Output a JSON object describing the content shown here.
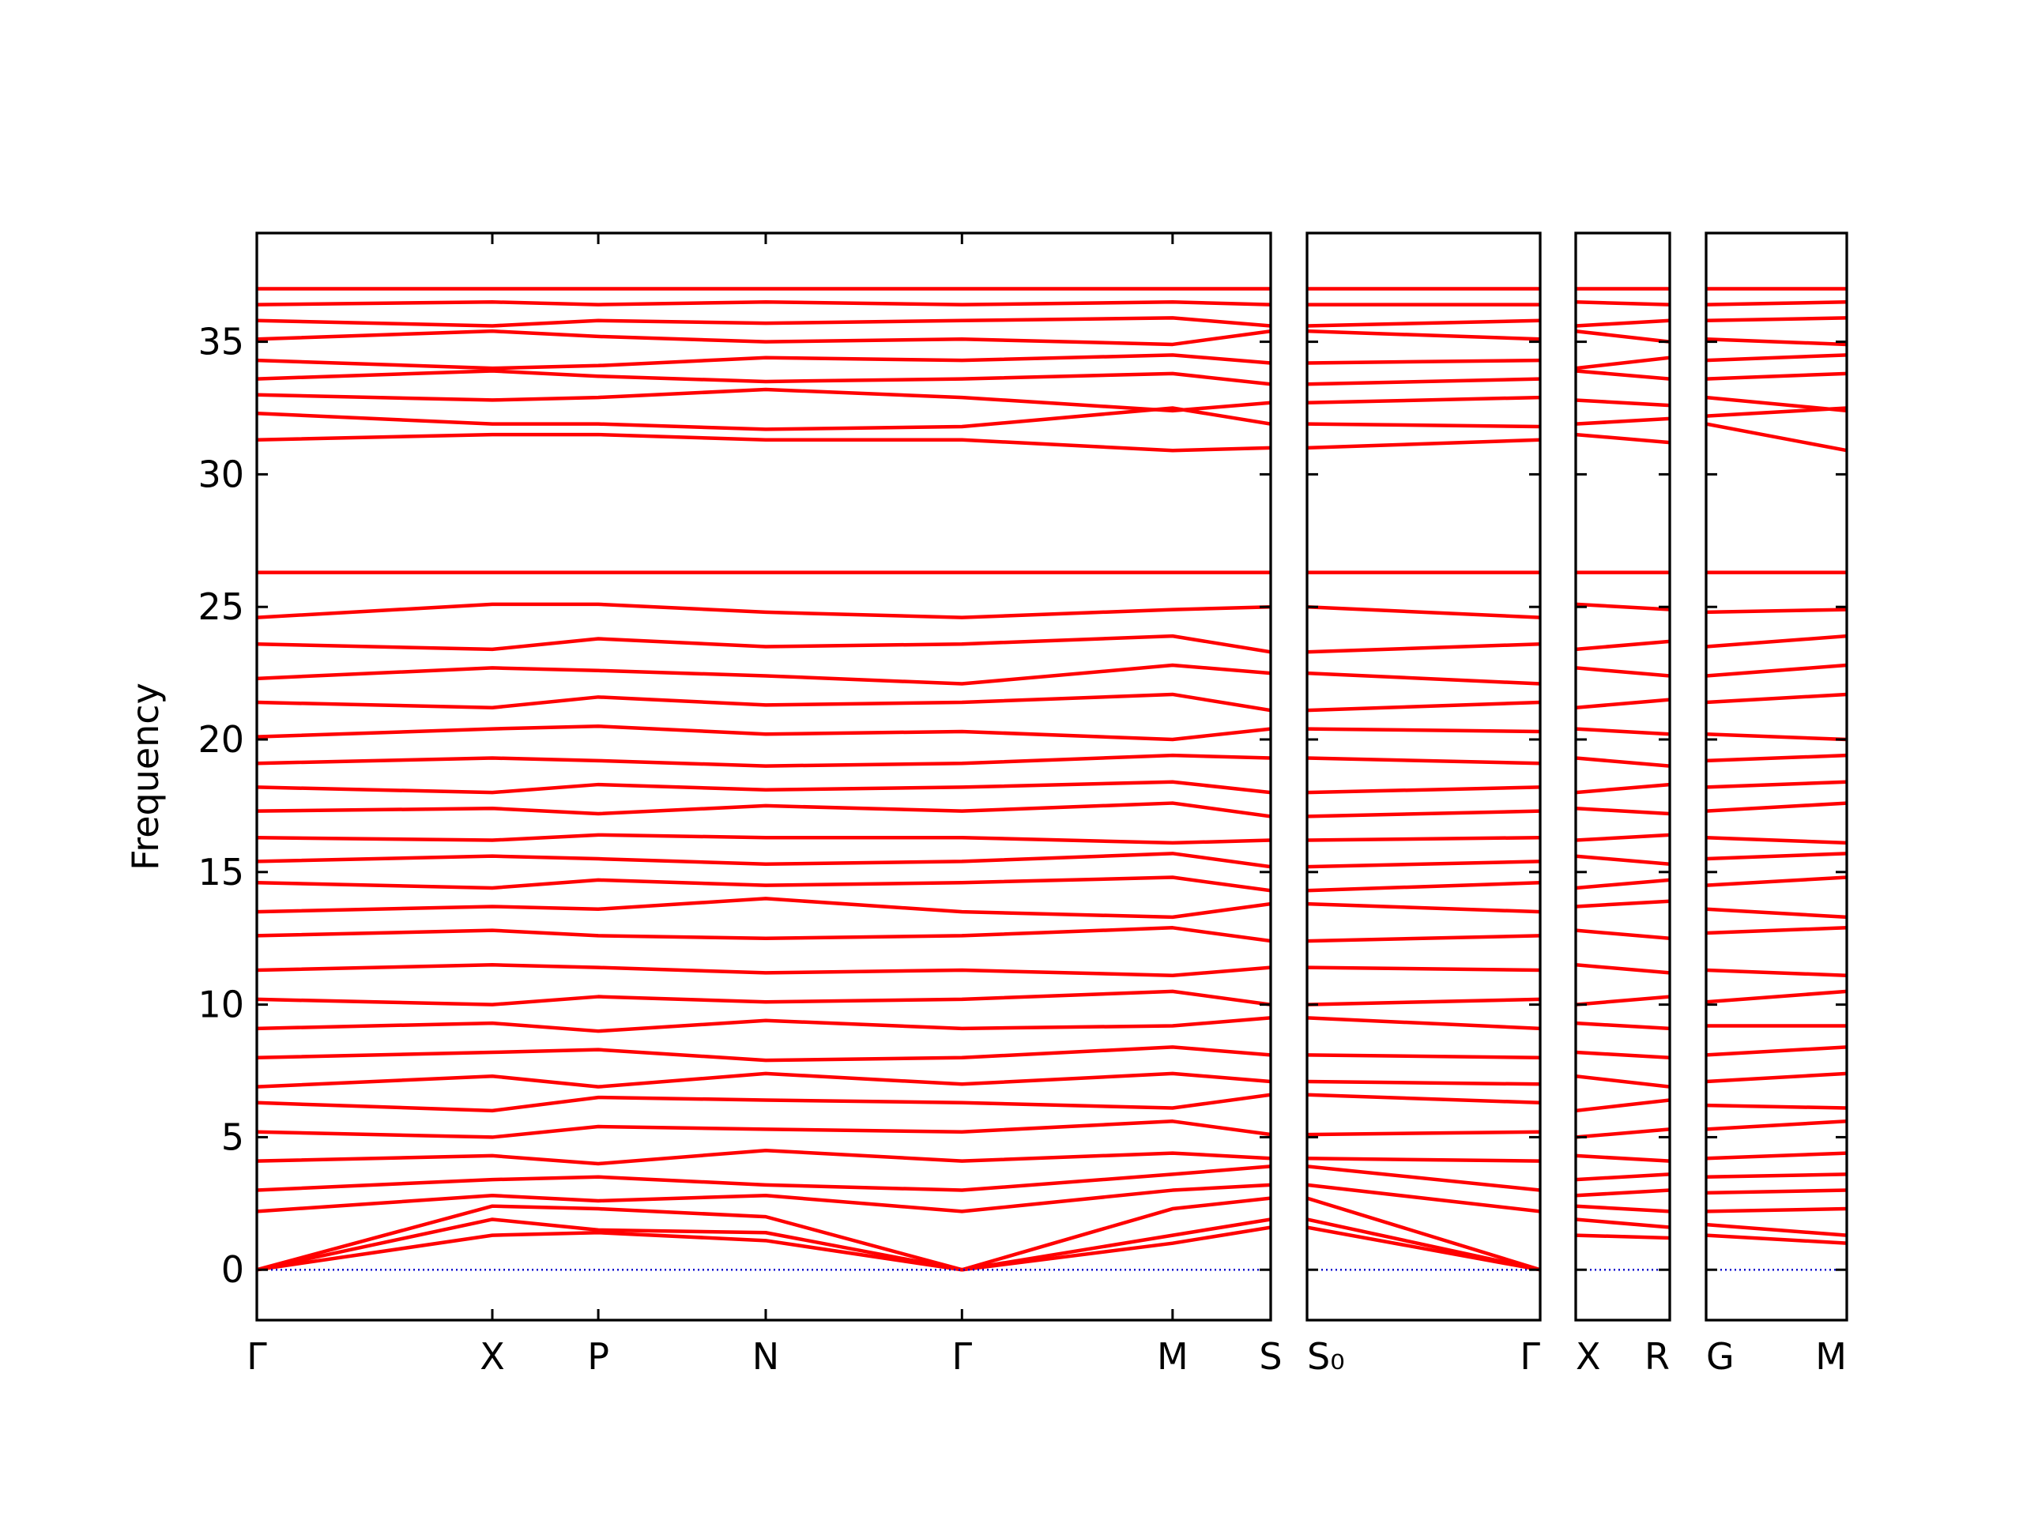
{
  "chart_data": [
    {
      "type": "line",
      "ylabel": "Frequency",
      "color": "#ff0000",
      "zero_line": {
        "value": 0,
        "color": "#0000cc"
      },
      "ylim": [
        -1.9,
        39.1
      ],
      "yticks": [
        0,
        5,
        10,
        15,
        20,
        25,
        30,
        35
      ],
      "ytick_labels": true,
      "xlim": [
        0,
        7.75
      ],
      "x": [
        0,
        1.8,
        2.61,
        3.89,
        5.39,
        7.0,
        7.75
      ],
      "xticks": [
        {
          "value": 0,
          "label": "Γ"
        },
        {
          "value": 1.8,
          "label": "X"
        },
        {
          "value": 2.61,
          "label": "P"
        },
        {
          "value": 3.89,
          "label": "N"
        },
        {
          "value": 5.39,
          "label": "Γ"
        },
        {
          "value": 7.0,
          "label": "M"
        },
        {
          "value": 7.75,
          "label": "S"
        }
      ],
      "series": [
        {
          "values": [
            0,
            1.3,
            1.4,
            1.1,
            0,
            1.0,
            1.6
          ]
        },
        {
          "values": [
            0,
            1.9,
            1.5,
            1.4,
            0,
            1.3,
            1.9
          ]
        },
        {
          "values": [
            0,
            2.4,
            2.3,
            2.0,
            0,
            2.3,
            2.7
          ]
        },
        {
          "values": [
            2.2,
            2.8,
            2.6,
            2.8,
            2.2,
            3.0,
            3.2
          ]
        },
        {
          "values": [
            3.0,
            3.4,
            3.5,
            3.2,
            3.0,
            3.6,
            3.9
          ]
        },
        {
          "values": [
            4.1,
            4.3,
            4.0,
            4.5,
            4.1,
            4.4,
            4.2
          ]
        },
        {
          "values": [
            5.2,
            5.0,
            5.4,
            5.3,
            5.2,
            5.6,
            5.1
          ]
        },
        {
          "values": [
            6.3,
            6.0,
            6.5,
            6.4,
            6.3,
            6.1,
            6.6
          ]
        },
        {
          "values": [
            6.9,
            7.3,
            6.9,
            7.4,
            7.0,
            7.4,
            7.1
          ]
        },
        {
          "values": [
            8.0,
            8.2,
            8.3,
            7.9,
            8.0,
            8.4,
            8.1
          ]
        },
        {
          "values": [
            9.1,
            9.3,
            9.0,
            9.4,
            9.1,
            9.2,
            9.5
          ]
        },
        {
          "values": [
            10.2,
            10.0,
            10.3,
            10.1,
            10.2,
            10.5,
            10.0
          ]
        },
        {
          "values": [
            11.3,
            11.5,
            11.4,
            11.2,
            11.3,
            11.1,
            11.4
          ]
        },
        {
          "values": [
            12.6,
            12.8,
            12.6,
            12.5,
            12.6,
            12.9,
            12.4
          ]
        },
        {
          "values": [
            13.5,
            13.7,
            13.6,
            14.0,
            13.5,
            13.3,
            13.8
          ]
        },
        {
          "values": [
            14.6,
            14.4,
            14.7,
            14.5,
            14.6,
            14.8,
            14.3
          ]
        },
        {
          "values": [
            15.4,
            15.6,
            15.5,
            15.3,
            15.4,
            15.7,
            15.2
          ]
        },
        {
          "values": [
            16.3,
            16.2,
            16.4,
            16.3,
            16.3,
            16.1,
            16.2
          ]
        },
        {
          "values": [
            17.3,
            17.4,
            17.2,
            17.5,
            17.3,
            17.6,
            17.1
          ]
        },
        {
          "values": [
            18.2,
            18.0,
            18.3,
            18.1,
            18.2,
            18.4,
            18.0
          ]
        },
        {
          "values": [
            19.1,
            19.3,
            19.2,
            19.0,
            19.1,
            19.4,
            19.3
          ]
        },
        {
          "values": [
            20.1,
            20.4,
            20.5,
            20.2,
            20.3,
            20.0,
            20.4
          ]
        },
        {
          "values": [
            21.4,
            21.2,
            21.6,
            21.3,
            21.4,
            21.7,
            21.1
          ]
        },
        {
          "values": [
            22.3,
            22.7,
            22.6,
            22.4,
            22.1,
            22.8,
            22.5
          ]
        },
        {
          "values": [
            23.6,
            23.4,
            23.8,
            23.5,
            23.6,
            23.9,
            23.3
          ]
        },
        {
          "values": [
            24.6,
            25.1,
            25.1,
            24.8,
            24.6,
            24.9,
            25.0
          ]
        },
        {
          "values": [
            26.3,
            26.3,
            26.3,
            26.3,
            26.3,
            26.3,
            26.3
          ]
        },
        {
          "values": [
            31.3,
            31.5,
            31.5,
            31.3,
            31.3,
            30.9,
            31.0
          ]
        },
        {
          "values": [
            32.3,
            31.9,
            31.9,
            31.7,
            31.8,
            32.5,
            31.9
          ]
        },
        {
          "values": [
            33.0,
            32.8,
            32.9,
            33.2,
            32.9,
            32.4,
            32.7
          ]
        },
        {
          "values": [
            33.6,
            33.9,
            33.7,
            33.5,
            33.6,
            33.8,
            33.4
          ]
        },
        {
          "values": [
            34.3,
            34.0,
            34.1,
            34.4,
            34.3,
            34.5,
            34.2
          ]
        },
        {
          "values": [
            35.1,
            35.4,
            35.2,
            35.0,
            35.1,
            34.9,
            35.4
          ]
        },
        {
          "values": [
            35.8,
            35.6,
            35.8,
            35.7,
            35.8,
            35.9,
            35.6
          ]
        },
        {
          "values": [
            36.4,
            36.5,
            36.4,
            36.5,
            36.4,
            36.5,
            36.4
          ]
        },
        {
          "values": [
            37.0,
            37.0,
            37.0,
            37.0,
            37.0,
            37.0,
            37.0
          ]
        }
      ]
    },
    {
      "type": "line",
      "color": "#ff0000",
      "zero_line": {
        "value": 0,
        "color": "#0000cc"
      },
      "ylim": [
        -1.9,
        39.1
      ],
      "yticks": [
        0,
        5,
        10,
        15,
        20,
        25,
        30,
        35
      ],
      "ytick_labels": false,
      "xlim": [
        0,
        1.78
      ],
      "x": [
        0,
        1.78
      ],
      "xticks": [
        {
          "value": 0,
          "label": "S₀"
        },
        {
          "value": 1.78,
          "label": "Γ"
        }
      ],
      "series": [
        {
          "values": [
            1.6,
            0
          ]
        },
        {
          "values": [
            1.9,
            0
          ]
        },
        {
          "values": [
            2.7,
            0
          ]
        },
        {
          "values": [
            3.2,
            2.2
          ]
        },
        {
          "values": [
            3.9,
            3.0
          ]
        },
        {
          "values": [
            4.2,
            4.1
          ]
        },
        {
          "values": [
            5.1,
            5.2
          ]
        },
        {
          "values": [
            6.6,
            6.3
          ]
        },
        {
          "values": [
            7.1,
            7.0
          ]
        },
        {
          "values": [
            8.1,
            8.0
          ]
        },
        {
          "values": [
            9.5,
            9.1
          ]
        },
        {
          "values": [
            10.0,
            10.2
          ]
        },
        {
          "values": [
            11.4,
            11.3
          ]
        },
        {
          "values": [
            12.4,
            12.6
          ]
        },
        {
          "values": [
            13.8,
            13.5
          ]
        },
        {
          "values": [
            14.3,
            14.6
          ]
        },
        {
          "values": [
            15.2,
            15.4
          ]
        },
        {
          "values": [
            16.2,
            16.3
          ]
        },
        {
          "values": [
            17.1,
            17.3
          ]
        },
        {
          "values": [
            18.0,
            18.2
          ]
        },
        {
          "values": [
            19.3,
            19.1
          ]
        },
        {
          "values": [
            20.4,
            20.3
          ]
        },
        {
          "values": [
            21.1,
            21.4
          ]
        },
        {
          "values": [
            22.5,
            22.1
          ]
        },
        {
          "values": [
            23.3,
            23.6
          ]
        },
        {
          "values": [
            25.0,
            24.6
          ]
        },
        {
          "values": [
            26.3,
            26.3
          ]
        },
        {
          "values": [
            31.0,
            31.3
          ]
        },
        {
          "values": [
            31.9,
            31.8
          ]
        },
        {
          "values": [
            32.7,
            32.9
          ]
        },
        {
          "values": [
            33.4,
            33.6
          ]
        },
        {
          "values": [
            34.2,
            34.3
          ]
        },
        {
          "values": [
            35.4,
            35.1
          ]
        },
        {
          "values": [
            35.6,
            35.8
          ]
        },
        {
          "values": [
            36.4,
            36.4
          ]
        },
        {
          "values": [
            37.0,
            37.0
          ]
        }
      ]
    },
    {
      "type": "line",
      "color": "#ff0000",
      "zero_line": {
        "value": 0,
        "color": "#0000cc"
      },
      "ylim": [
        -1.9,
        39.1
      ],
      "yticks": [
        0,
        5,
        10,
        15,
        20,
        25,
        30,
        35
      ],
      "ytick_labels": false,
      "xlim": [
        0,
        0.72
      ],
      "x": [
        0,
        0.72
      ],
      "xticks": [
        {
          "value": 0,
          "label": "X"
        },
        {
          "value": 0.72,
          "label": "R"
        }
      ],
      "series": [
        {
          "values": [
            1.3,
            1.2
          ]
        },
        {
          "values": [
            1.9,
            1.6
          ]
        },
        {
          "values": [
            2.4,
            2.2
          ]
        },
        {
          "values": [
            2.8,
            3.0
          ]
        },
        {
          "values": [
            3.4,
            3.6
          ]
        },
        {
          "values": [
            4.3,
            4.1
          ]
        },
        {
          "values": [
            5.0,
            5.3
          ]
        },
        {
          "values": [
            6.0,
            6.4
          ]
        },
        {
          "values": [
            7.3,
            6.9
          ]
        },
        {
          "values": [
            8.2,
            8.0
          ]
        },
        {
          "values": [
            9.3,
            9.1
          ]
        },
        {
          "values": [
            10.0,
            10.3
          ]
        },
        {
          "values": [
            11.5,
            11.2
          ]
        },
        {
          "values": [
            12.8,
            12.5
          ]
        },
        {
          "values": [
            13.7,
            13.9
          ]
        },
        {
          "values": [
            14.4,
            14.7
          ]
        },
        {
          "values": [
            15.6,
            15.3
          ]
        },
        {
          "values": [
            16.2,
            16.4
          ]
        },
        {
          "values": [
            17.4,
            17.2
          ]
        },
        {
          "values": [
            18.0,
            18.3
          ]
        },
        {
          "values": [
            19.3,
            19.0
          ]
        },
        {
          "values": [
            20.4,
            20.2
          ]
        },
        {
          "values": [
            21.2,
            21.5
          ]
        },
        {
          "values": [
            22.7,
            22.4
          ]
        },
        {
          "values": [
            23.4,
            23.7
          ]
        },
        {
          "values": [
            25.1,
            24.9
          ]
        },
        {
          "values": [
            26.3,
            26.3
          ]
        },
        {
          "values": [
            31.5,
            31.2
          ]
        },
        {
          "values": [
            31.9,
            32.1
          ]
        },
        {
          "values": [
            32.8,
            32.6
          ]
        },
        {
          "values": [
            33.9,
            33.6
          ]
        },
        {
          "values": [
            34.0,
            34.4
          ]
        },
        {
          "values": [
            35.4,
            35.0
          ]
        },
        {
          "values": [
            35.6,
            35.8
          ]
        },
        {
          "values": [
            36.5,
            36.4
          ]
        },
        {
          "values": [
            37.0,
            37.0
          ]
        }
      ]
    },
    {
      "type": "line",
      "color": "#ff0000",
      "zero_line": {
        "value": 0,
        "color": "#0000cc"
      },
      "ylim": [
        -1.9,
        39.1
      ],
      "yticks": [
        0,
        5,
        10,
        15,
        20,
        25,
        30,
        35
      ],
      "ytick_labels": false,
      "xlim": [
        0,
        1.07
      ],
      "x": [
        0,
        1.07
      ],
      "xticks": [
        {
          "value": 0,
          "label": "G"
        },
        {
          "value": 1.07,
          "label": "M"
        }
      ],
      "series": [
        {
          "values": [
            1.3,
            1.0
          ]
        },
        {
          "values": [
            1.7,
            1.3
          ]
        },
        {
          "values": [
            2.2,
            2.3
          ]
        },
        {
          "values": [
            2.9,
            3.0
          ]
        },
        {
          "values": [
            3.5,
            3.6
          ]
        },
        {
          "values": [
            4.2,
            4.4
          ]
        },
        {
          "values": [
            5.3,
            5.6
          ]
        },
        {
          "values": [
            6.2,
            6.1
          ]
        },
        {
          "values": [
            7.1,
            7.4
          ]
        },
        {
          "values": [
            8.1,
            8.4
          ]
        },
        {
          "values": [
            9.2,
            9.2
          ]
        },
        {
          "values": [
            10.1,
            10.5
          ]
        },
        {
          "values": [
            11.3,
            11.1
          ]
        },
        {
          "values": [
            12.7,
            12.9
          ]
        },
        {
          "values": [
            13.6,
            13.3
          ]
        },
        {
          "values": [
            14.5,
            14.8
          ]
        },
        {
          "values": [
            15.5,
            15.7
          ]
        },
        {
          "values": [
            16.3,
            16.1
          ]
        },
        {
          "values": [
            17.3,
            17.6
          ]
        },
        {
          "values": [
            18.2,
            18.4
          ]
        },
        {
          "values": [
            19.2,
            19.4
          ]
        },
        {
          "values": [
            20.2,
            20.0
          ]
        },
        {
          "values": [
            21.4,
            21.7
          ]
        },
        {
          "values": [
            22.4,
            22.8
          ]
        },
        {
          "values": [
            23.5,
            23.9
          ]
        },
        {
          "values": [
            24.8,
            24.9
          ]
        },
        {
          "values": [
            26.3,
            26.3
          ]
        },
        {
          "values": [
            31.9,
            30.9
          ]
        },
        {
          "values": [
            32.2,
            32.5
          ]
        },
        {
          "values": [
            32.9,
            32.4
          ]
        },
        {
          "values": [
            33.6,
            33.8
          ]
        },
        {
          "values": [
            34.3,
            34.5
          ]
        },
        {
          "values": [
            35.1,
            34.9
          ]
        },
        {
          "values": [
            35.8,
            35.9
          ]
        },
        {
          "values": [
            36.4,
            36.5
          ]
        },
        {
          "values": [
            37.0,
            37.0
          ]
        }
      ]
    }
  ]
}
